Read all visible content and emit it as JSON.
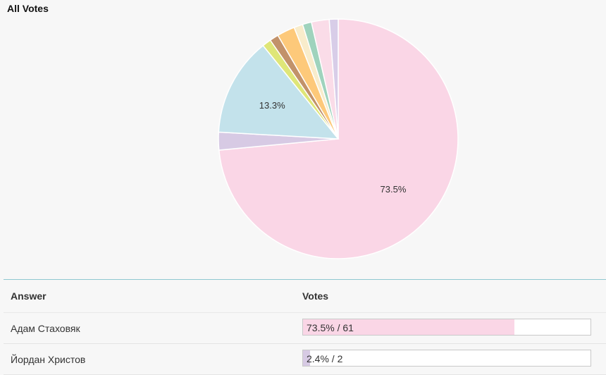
{
  "title": "All Votes",
  "chart_data": {
    "type": "pie",
    "title": "All Votes",
    "slices": [
      {
        "value": 73.5,
        "color": "#fad6e6",
        "label": "73.5%"
      },
      {
        "value": 2.4,
        "color": "#d7cae4",
        "label": ""
      },
      {
        "value": 13.3,
        "color": "#c3e2eb",
        "label": "13.3%"
      },
      {
        "value": 1.2,
        "color": "#dfe678",
        "label": ""
      },
      {
        "value": 1.2,
        "color": "#c2926a",
        "label": ""
      },
      {
        "value": 2.4,
        "color": "#fdc97a",
        "label": ""
      },
      {
        "value": 1.2,
        "color": "#f8eccb",
        "label": ""
      },
      {
        "value": 1.2,
        "color": "#9fd3bd",
        "label": ""
      },
      {
        "value": 2.4,
        "color": "#fadce8",
        "label": ""
      },
      {
        "value": 1.2,
        "color": "#d8cde8",
        "label": ""
      }
    ]
  },
  "table": {
    "headers": {
      "answer": "Answer",
      "votes": "Votes"
    },
    "rows": [
      {
        "answer": "Адам Стаховяк",
        "percent": 73.5,
        "votes_text": "73.5% / 61",
        "color": "#fad6e6"
      },
      {
        "answer": "Йордан Христов",
        "percent": 2.4,
        "votes_text": "2.4% / 2",
        "color": "#d7cae4"
      }
    ]
  }
}
